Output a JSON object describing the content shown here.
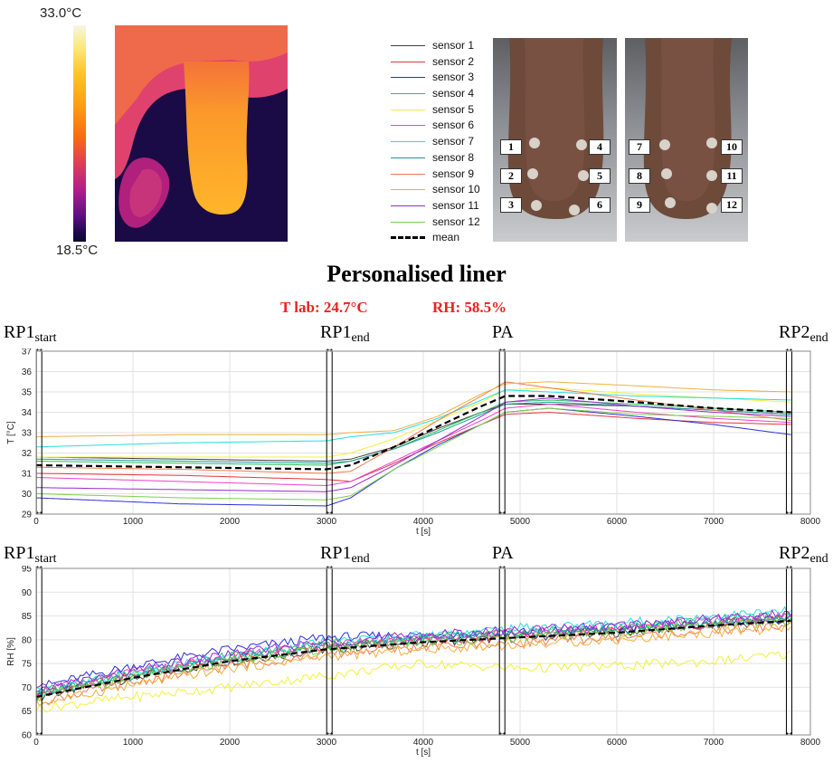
{
  "thermal": {
    "max_label": "33.0°C",
    "min_label": "18.5°C"
  },
  "legend": {
    "entries": [
      {
        "label": "sensor 1",
        "color": "#404040"
      },
      {
        "label": "sensor 2",
        "color": "#e8343a"
      },
      {
        "label": "sensor 3",
        "color": "#2e2ed8"
      },
      {
        "label": "sensor 4",
        "color": "#27c15a"
      },
      {
        "label": "sensor 5",
        "color": "#f2f03a"
      },
      {
        "label": "sensor 6",
        "color": "#ef3fd0"
      },
      {
        "label": "sensor 7",
        "color": "#22e0e0"
      },
      {
        "label": "sensor 8",
        "color": "#1e9a9a"
      },
      {
        "label": "sensor 9",
        "color": "#f07a50"
      },
      {
        "label": "sensor 10",
        "color": "#f0b040"
      },
      {
        "label": "sensor 11",
        "color": "#9a2ad0"
      },
      {
        "label": "sensor 12",
        "color": "#7ad04a"
      }
    ],
    "mean_label": "mean"
  },
  "sensor_boxes_left": [
    "1",
    "4",
    "2",
    "5",
    "3",
    "6"
  ],
  "sensor_boxes_right": [
    "7",
    "10",
    "8",
    "11",
    "9",
    "12"
  ],
  "title": "Personalised liner",
  "conditions": {
    "t_lab": "T lab: 24.7°C",
    "rh": "RH: 58.5%"
  },
  "markers": [
    {
      "base": "RP1",
      "sub": "start"
    },
    {
      "base": "RP1",
      "sub": "end"
    },
    {
      "base": "PA",
      "sub": ""
    },
    {
      "base": "RP2",
      "sub": "end"
    }
  ],
  "chart_data": [
    {
      "type": "line",
      "ylabel": "T [°C]",
      "xlabel": "t [s]",
      "xlim": [
        0,
        8000
      ],
      "ylim": [
        29,
        37
      ],
      "xticks": [
        0,
        1000,
        2000,
        3000,
        4000,
        5000,
        6000,
        7000,
        8000
      ],
      "yticks": [
        29,
        30,
        31,
        32,
        33,
        34,
        35,
        36,
        37
      ],
      "grid": true,
      "vlines": [
        30,
        3030,
        4815,
        7780
      ],
      "x": [
        0,
        1500,
        3000,
        3250,
        3700,
        4150,
        4600,
        4850,
        5300,
        6200,
        7000,
        7800
      ],
      "series": [
        {
          "name": "sensor 1",
          "values": [
            31.8,
            31.7,
            31.6,
            31.7,
            32.3,
            33.2,
            34.0,
            34.4,
            34.4,
            34.3,
            34.1,
            33.9
          ]
        },
        {
          "name": "sensor 2",
          "values": [
            31.0,
            30.9,
            30.7,
            30.6,
            31.5,
            32.5,
            33.4,
            33.9,
            34.0,
            33.7,
            33.5,
            33.4
          ]
        },
        {
          "name": "sensor 3",
          "values": [
            29.8,
            29.5,
            29.4,
            29.8,
            31.2,
            32.4,
            33.4,
            34.0,
            34.2,
            33.8,
            33.4,
            32.9
          ]
        },
        {
          "name": "sensor 4",
          "values": [
            31.6,
            31.5,
            31.4,
            31.6,
            32.2,
            33.1,
            34.0,
            34.5,
            34.6,
            34.4,
            34.2,
            34.0
          ]
        },
        {
          "name": "sensor 5",
          "values": [
            31.8,
            31.8,
            31.8,
            32.0,
            32.7,
            33.6,
            34.5,
            35.1,
            35.2,
            34.9,
            34.7,
            34.5
          ]
        },
        {
          "name": "sensor 6",
          "values": [
            30.8,
            30.6,
            30.4,
            30.6,
            31.6,
            32.6,
            33.6,
            34.2,
            34.4,
            34.0,
            33.7,
            33.5
          ]
        },
        {
          "name": "sensor 7",
          "values": [
            32.3,
            32.5,
            32.6,
            32.8,
            33.0,
            33.7,
            34.6,
            35.1,
            35.0,
            34.8,
            34.7,
            34.6
          ]
        },
        {
          "name": "sensor 8",
          "values": [
            31.7,
            31.6,
            31.5,
            31.6,
            32.2,
            33.0,
            33.9,
            34.4,
            34.5,
            34.3,
            34.1,
            33.9
          ]
        },
        {
          "name": "sensor 9",
          "values": [
            31.3,
            31.2,
            31.0,
            31.1,
            32.3,
            33.6,
            34.8,
            35.5,
            35.2,
            34.6,
            34.1,
            33.6
          ]
        },
        {
          "name": "sensor 10",
          "values": [
            32.8,
            32.9,
            32.9,
            33.0,
            33.1,
            33.8,
            34.9,
            35.4,
            35.5,
            35.3,
            35.1,
            35.0
          ]
        },
        {
          "name": "sensor 11",
          "values": [
            30.3,
            30.2,
            30.1,
            30.3,
            31.4,
            32.6,
            33.8,
            34.5,
            34.7,
            34.3,
            34.0,
            33.8
          ]
        },
        {
          "name": "sensor 12",
          "values": [
            30.0,
            29.8,
            29.7,
            29.9,
            31.2,
            32.3,
            33.4,
            34.0,
            34.2,
            33.9,
            33.8,
            33.7
          ]
        },
        {
          "name": "mean",
          "values": [
            31.4,
            31.3,
            31.2,
            31.4,
            32.3,
            33.3,
            34.3,
            34.8,
            34.8,
            34.5,
            34.2,
            34.0
          ]
        }
      ]
    },
    {
      "type": "line",
      "ylabel": "RH [%]",
      "xlabel": "t [s]",
      "xlim": [
        0,
        8000
      ],
      "ylim": [
        60,
        95
      ],
      "xticks": [
        0,
        1000,
        2000,
        3000,
        4000,
        5000,
        6000,
        7000,
        8000
      ],
      "yticks": [
        60,
        65,
        70,
        75,
        80,
        85,
        90,
        95
      ],
      "grid": true,
      "vlines": [
        30,
        3030,
        4815,
        7780
      ],
      "x": [
        0,
        1000,
        2000,
        3000,
        4000,
        5000,
        6000,
        7000,
        7800
      ],
      "series": [
        {
          "name": "sensor 1",
          "values": [
            68,
            72,
            75.5,
            78,
            79.5,
            80.5,
            81.5,
            83,
            84
          ]
        },
        {
          "name": "sensor 2",
          "values": [
            68.5,
            72.5,
            76,
            78.5,
            80,
            81,
            82,
            83.5,
            84.5
          ]
        },
        {
          "name": "sensor 3",
          "values": [
            70,
            74.5,
            78,
            80.5,
            81,
            81.5,
            82.5,
            83.5,
            84.5
          ]
        },
        {
          "name": "sensor 4",
          "values": [
            69,
            73,
            76.5,
            79,
            80.5,
            81.5,
            82.5,
            84,
            85
          ]
        },
        {
          "name": "sensor 5",
          "values": [
            65.5,
            68,
            70,
            72.5,
            75,
            74,
            74.5,
            75.5,
            77
          ]
        },
        {
          "name": "sensor 6",
          "values": [
            69,
            73,
            76.5,
            79,
            80.5,
            81.5,
            82.5,
            84,
            85
          ]
        },
        {
          "name": "sensor 7",
          "values": [
            69,
            73,
            76.5,
            79.5,
            81,
            82.5,
            83.5,
            85,
            86
          ]
        },
        {
          "name": "sensor 8",
          "values": [
            68.5,
            72.5,
            76,
            78.5,
            80,
            81,
            82,
            83.5,
            84.5
          ]
        },
        {
          "name": "sensor 9",
          "values": [
            67,
            71,
            74.5,
            77,
            78.5,
            79.5,
            80.5,
            82,
            83
          ]
        },
        {
          "name": "sensor 10",
          "values": [
            66.5,
            70.5,
            74,
            76.5,
            78,
            79,
            80,
            81.5,
            82.5
          ]
        },
        {
          "name": "sensor 11",
          "values": [
            69.5,
            73.5,
            77,
            79.5,
            81,
            82,
            83,
            84.5,
            85.5
          ]
        },
        {
          "name": "sensor 12",
          "values": [
            68,
            72,
            75.5,
            78,
            79.5,
            80.5,
            81.5,
            83,
            84
          ]
        },
        {
          "name": "mean",
          "values": [
            68,
            72,
            75.5,
            78,
            79.5,
            80.5,
            81.5,
            83,
            84
          ]
        }
      ]
    }
  ]
}
